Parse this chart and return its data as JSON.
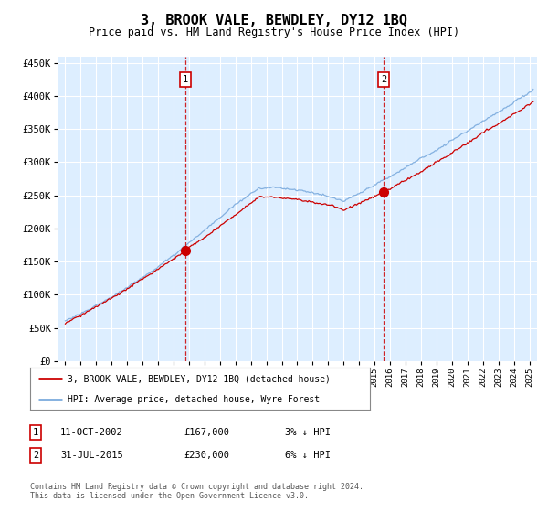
{
  "title": "3, BROOK VALE, BEWDLEY, DY12 1BQ",
  "subtitle": "Price paid vs. HM Land Registry's House Price Index (HPI)",
  "title_fontsize": 11,
  "subtitle_fontsize": 8.5,
  "ylabel_ticks": [
    "£0",
    "£50K",
    "£100K",
    "£150K",
    "£200K",
    "£250K",
    "£300K",
    "£350K",
    "£400K",
    "£450K"
  ],
  "ylabel_values": [
    0,
    50000,
    100000,
    150000,
    200000,
    250000,
    300000,
    350000,
    400000,
    450000
  ],
  "ylim": [
    0,
    460000
  ],
  "xlim_start": 1994.5,
  "xlim_end": 2025.5,
  "bg_color": "#ddeeff",
  "grid_color": "#ffffff",
  "hpi_color": "#7aaadd",
  "price_color": "#cc0000",
  "sale1_date": 2002.78,
  "sale1_price": 167000,
  "sale2_date": 2015.58,
  "sale2_price": 230000,
  "vline1_x": 2002.78,
  "vline2_x": 2015.58,
  "legend_label_red": "3, BROOK VALE, BEWDLEY, DY12 1BQ (detached house)",
  "legend_label_blue": "HPI: Average price, detached house, Wyre Forest",
  "table_row1": [
    "1",
    "11-OCT-2002",
    "£167,000",
    "3% ↓ HPI"
  ],
  "table_row2": [
    "2",
    "31-JUL-2015",
    "£230,000",
    "6% ↓ HPI"
  ],
  "footnote": "Contains HM Land Registry data © Crown copyright and database right 2024.\nThis data is licensed under the Open Government Licence v3.0.",
  "x_tick_years": [
    1995,
    1996,
    1997,
    1998,
    1999,
    2000,
    2001,
    2002,
    2003,
    2004,
    2005,
    2006,
    2007,
    2008,
    2009,
    2010,
    2011,
    2012,
    2013,
    2014,
    2015,
    2016,
    2017,
    2018,
    2019,
    2020,
    2021,
    2022,
    2023,
    2024,
    2025
  ]
}
